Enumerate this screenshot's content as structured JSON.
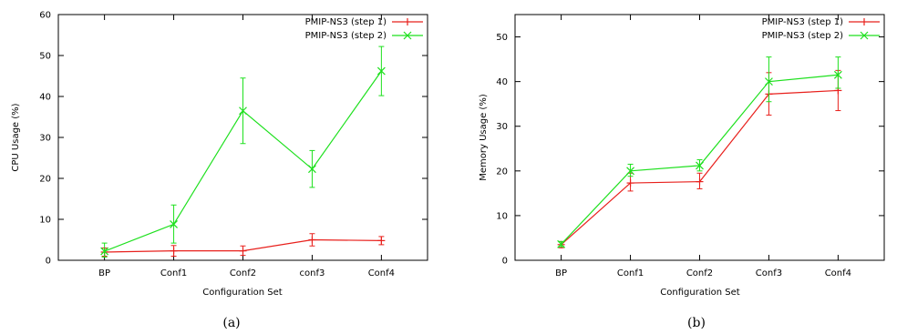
{
  "chart_data": [
    {
      "type": "line",
      "caption": "(a)",
      "xlabel": "Configuration Set",
      "ylabel": "CPU Usage (%)",
      "categories": [
        "BP",
        "Conf1",
        "Conf2",
        "conf3",
        "Conf4"
      ],
      "ylim": [
        0,
        60
      ],
      "yticks": [
        0,
        10,
        20,
        30,
        40,
        50,
        60
      ],
      "legend_position": "top-right",
      "series": [
        {
          "name": "PMIP-NS3 (step 1)",
          "color": "#e8201c",
          "values": [
            2.0,
            2.3,
            2.3,
            5.0,
            4.8
          ],
          "err_low": [
            1.0,
            1.0,
            1.2,
            3.5,
            3.8
          ],
          "err_high": [
            3.0,
            3.6,
            3.5,
            6.5,
            5.8
          ]
        },
        {
          "name": "PMIP-NS3 (step 2)",
          "color": "#1ee01e",
          "values": [
            2.2,
            8.8,
            36.5,
            22.3,
            46.2
          ],
          "err_low": [
            0.8,
            4.2,
            28.5,
            17.8,
            40.2
          ],
          "err_high": [
            4.2,
            13.5,
            44.5,
            26.8,
            52.2
          ]
        }
      ]
    },
    {
      "type": "line",
      "caption": "(b)",
      "xlabel": "Configuration Set",
      "ylabel": "Memory Usage (%)",
      "categories": [
        "BP",
        "Conf1",
        "Conf2",
        "Conf3",
        "Conf4"
      ],
      "ylim": [
        0,
        55
      ],
      "yticks": [
        0,
        10,
        20,
        30,
        40,
        50
      ],
      "legend_position": "top-right",
      "series": [
        {
          "name": "PMIP-NS3 (step 1)",
          "color": "#e8201c",
          "values": [
            3.5,
            17.3,
            17.6,
            37.2,
            38.0
          ],
          "err_low": [
            2.8,
            15.5,
            16.0,
            32.5,
            33.5
          ],
          "err_high": [
            4.2,
            19.5,
            19.5,
            42.0,
            42.5
          ]
        },
        {
          "name": "PMIP-NS3 (step 2)",
          "color": "#1ee01e",
          "values": [
            3.6,
            20.0,
            21.2,
            40.0,
            41.5
          ],
          "err_low": [
            3.0,
            18.8,
            20.0,
            35.5,
            38.5
          ],
          "err_high": [
            4.2,
            21.5,
            22.5,
            45.5,
            45.5
          ]
        }
      ]
    }
  ]
}
